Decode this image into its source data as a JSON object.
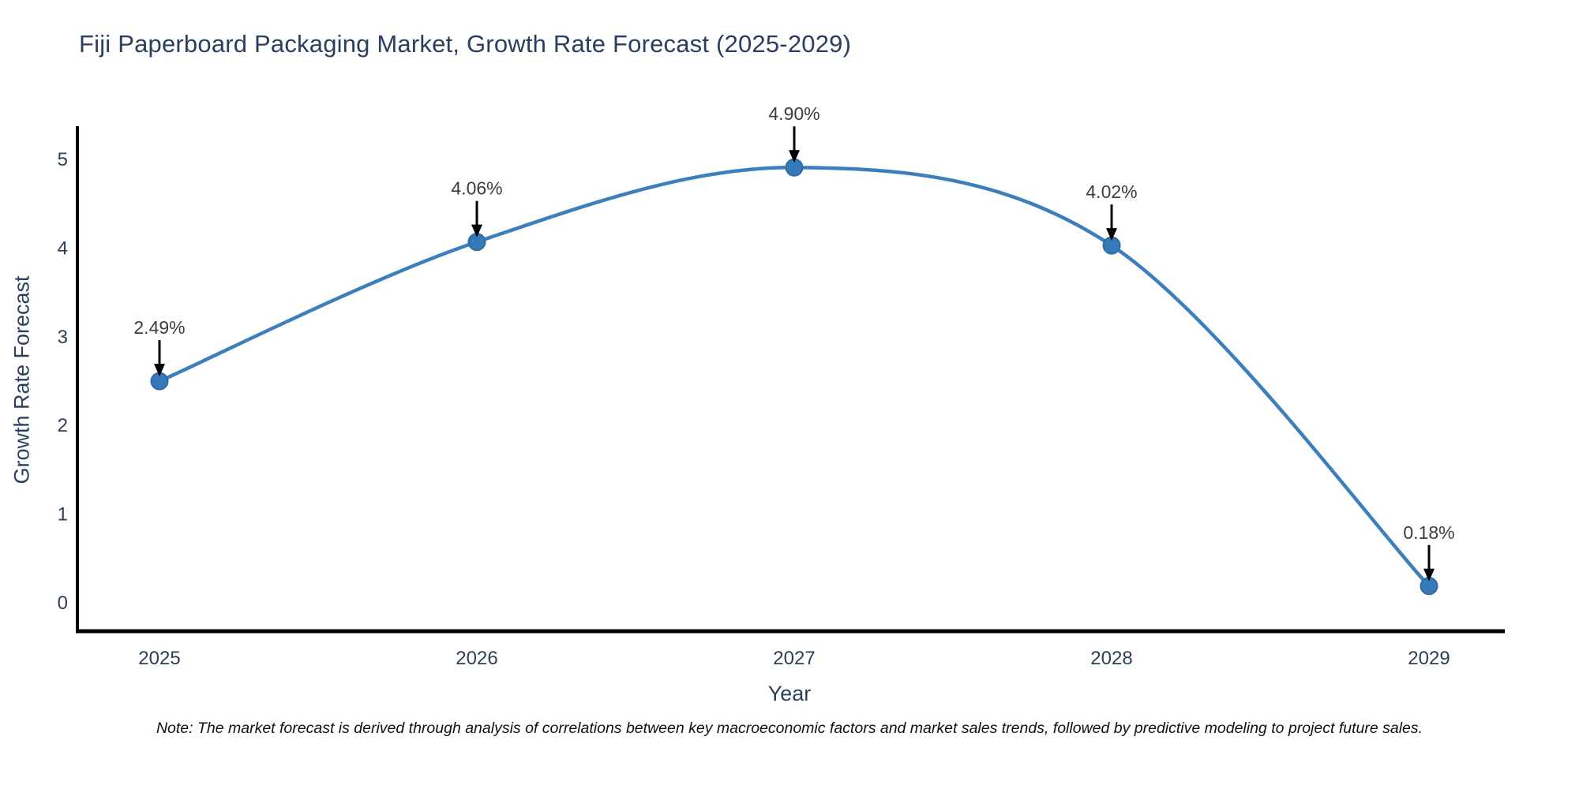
{
  "title": "Fiji Paperboard Packaging Market, Growth Rate Forecast (2025-2029)",
  "note": "Note: The market forecast is derived through analysis of correlations between key macroeconomic factors and market sales trends, followed by predictive modeling to project future sales.",
  "chart_data": {
    "type": "line",
    "title": "Fiji Paperboard Packaging Market, Growth Rate Forecast (2025-2029)",
    "x": [
      "2025",
      "2026",
      "2027",
      "2028",
      "2029"
    ],
    "values": [
      2.49,
      4.06,
      4.9,
      4.02,
      0.18
    ],
    "labels": [
      "2.49%",
      "4.06%",
      "4.90%",
      "4.02%",
      "0.18%"
    ],
    "xlabel": "Year",
    "ylabel": "Growth Rate Forecast",
    "yticks": [
      "0",
      "1",
      "2",
      "3",
      "4",
      "5"
    ],
    "ylim": [
      0,
      5
    ],
    "grid": false,
    "legend": "none",
    "line_shape": "spline",
    "colors": {
      "line": "#3d7ebd",
      "marker_fill": "#3579b8",
      "marker_edge": "#2f6ba3",
      "axis_line": "#000000",
      "annotation_arrow": "#000000",
      "annotation_text": "#3d3d3d",
      "tick_text": "#2e3f54",
      "title_text": "#2a3f5f",
      "background": "#ffffff"
    }
  }
}
